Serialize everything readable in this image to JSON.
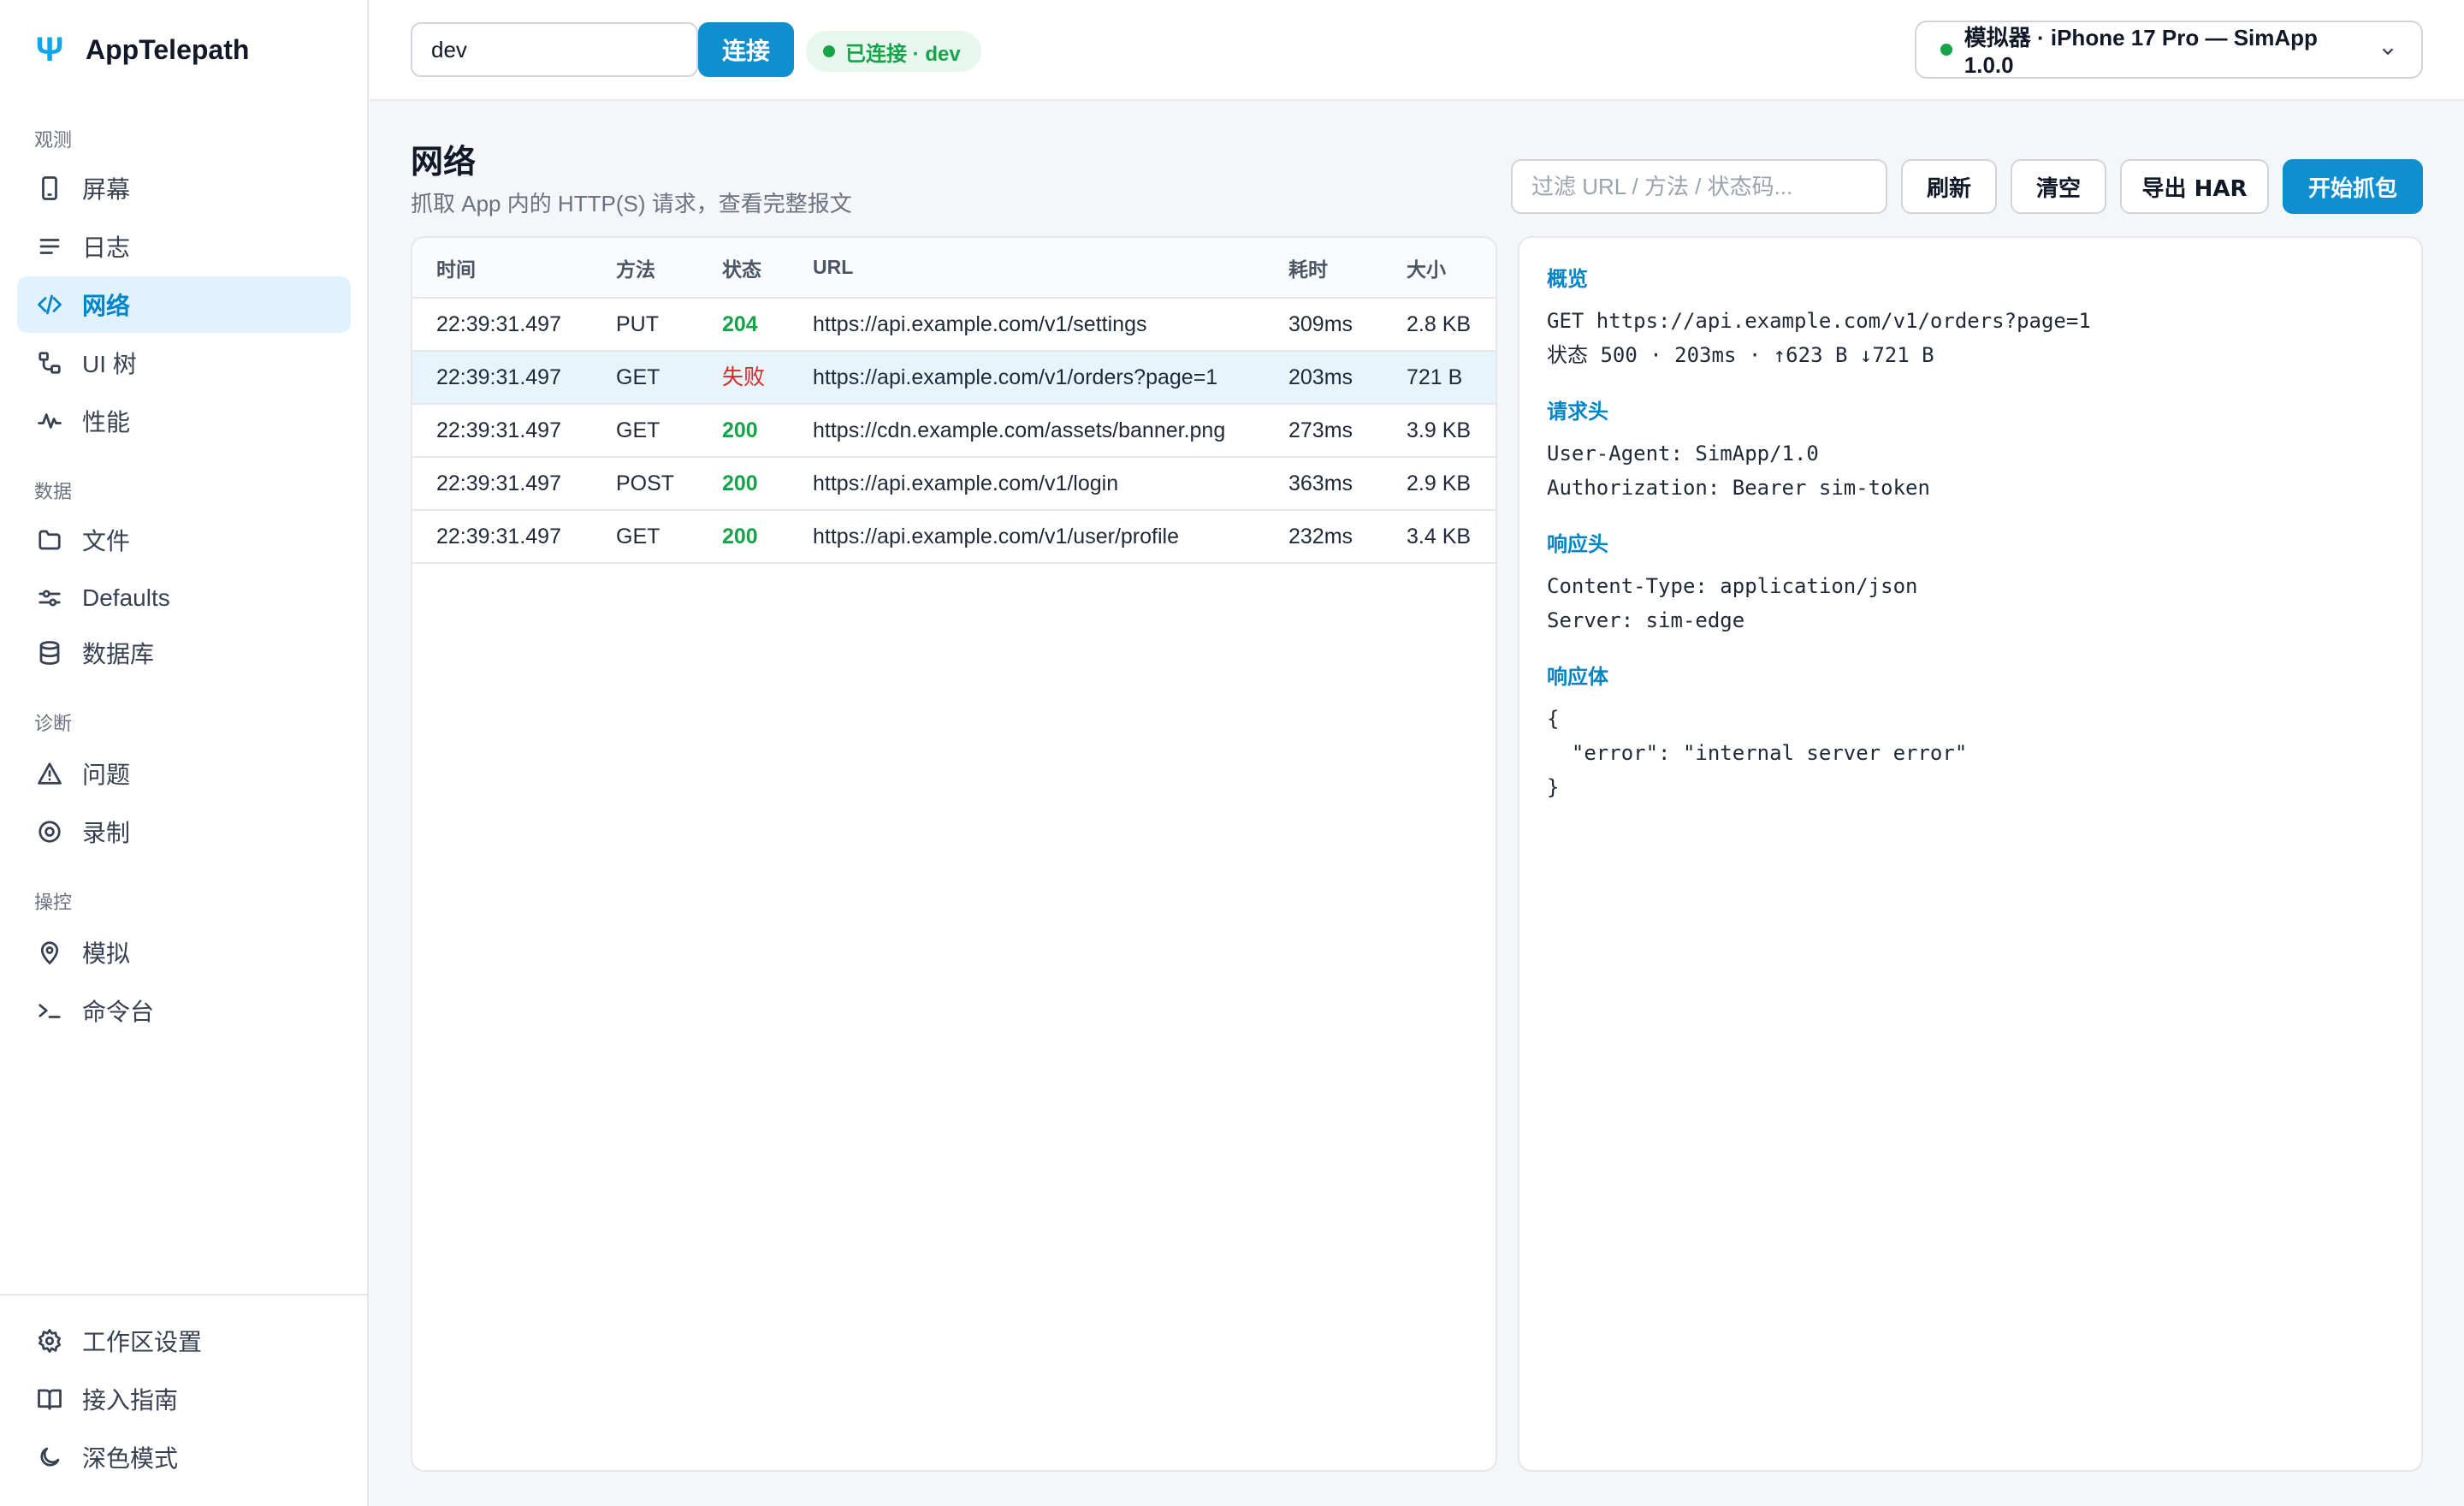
{
  "app": {
    "name": "AppTelepath"
  },
  "sidebar": {
    "groups": [
      {
        "title": "观测",
        "items": [
          {
            "label": "屏幕",
            "icon": "phone-icon"
          },
          {
            "label": "日志",
            "icon": "list-icon"
          },
          {
            "label": "网络",
            "icon": "code-icon",
            "active": true
          },
          {
            "label": "UI 树",
            "icon": "tree-icon"
          },
          {
            "label": "性能",
            "icon": "activity-icon"
          }
        ]
      },
      {
        "title": "数据",
        "items": [
          {
            "label": "文件",
            "icon": "folder-icon"
          },
          {
            "label": "Defaults",
            "icon": "sliders-icon"
          },
          {
            "label": "数据库",
            "icon": "database-icon"
          }
        ]
      },
      {
        "title": "诊断",
        "items": [
          {
            "label": "问题",
            "icon": "warning-icon"
          },
          {
            "label": "录制",
            "icon": "record-icon"
          }
        ]
      },
      {
        "title": "操控",
        "items": [
          {
            "label": "模拟",
            "icon": "location-pin-icon"
          },
          {
            "label": "命令台",
            "icon": "terminal-icon"
          }
        ]
      }
    ],
    "footer": [
      {
        "label": "工作区设置",
        "icon": "gear-icon"
      },
      {
        "label": "接入指南",
        "icon": "book-icon"
      },
      {
        "label": "深色模式",
        "icon": "moon-icon"
      }
    ]
  },
  "topbar": {
    "connection_value": "dev",
    "connect_label": "连接",
    "status_text": "已连接 · dev",
    "device_label": "模拟器 · iPhone 17 Pro — SimApp 1.0.0"
  },
  "page": {
    "title": "网络",
    "subtitle": "抓取 App 内的 HTTP(S) 请求，查看完整报文",
    "filter_placeholder": "过滤 URL / 方法 / 状态码...",
    "buttons": {
      "refresh": "刷新",
      "clear": "清空",
      "export": "导出 HAR",
      "start": "开始抓包"
    }
  },
  "table": {
    "headers": [
      "时间",
      "方法",
      "状态",
      "URL",
      "耗时",
      "大小"
    ],
    "rows": [
      {
        "time": "22:39:31.497",
        "method": "PUT",
        "status": "204",
        "url": "https://api.example.com/v1/settings",
        "duration": "309ms",
        "size": "2.8 KB"
      },
      {
        "time": "22:39:31.497",
        "method": "GET",
        "status": "失败",
        "url": "https://api.example.com/v1/orders?page=1",
        "duration": "203ms",
        "size": "721 B"
      },
      {
        "time": "22:39:31.497",
        "method": "GET",
        "status": "200",
        "url": "https://cdn.example.com/assets/banner.png",
        "duration": "273ms",
        "size": "3.9 KB"
      },
      {
        "time": "22:39:31.497",
        "method": "POST",
        "status": "200",
        "url": "https://api.example.com/v1/login",
        "duration": "363ms",
        "size": "2.9 KB"
      },
      {
        "time": "22:39:31.497",
        "method": "GET",
        "status": "200",
        "url": "https://api.example.com/v1/user/profile",
        "duration": "232ms",
        "size": "3.4 KB"
      }
    ]
  },
  "detail": {
    "overview_title": "概览",
    "overview_lines": [
      "GET https://api.example.com/v1/orders?page=1",
      "状态 500 · 203ms · ↑623 B ↓721 B"
    ],
    "req_headers_title": "请求头",
    "req_headers": [
      "User-Agent: SimApp/1.0",
      "Authorization: Bearer sim-token"
    ],
    "resp_headers_title": "响应头",
    "resp_headers": [
      "Content-Type: application/json",
      "Server: sim-edge"
    ],
    "resp_body_title": "响应体",
    "resp_body": "{\n  \"error\": \"internal server error\"\n}"
  },
  "colors": {
    "accent": "#0e8fd0",
    "success": "#16a34a",
    "error": "#dc2626"
  }
}
